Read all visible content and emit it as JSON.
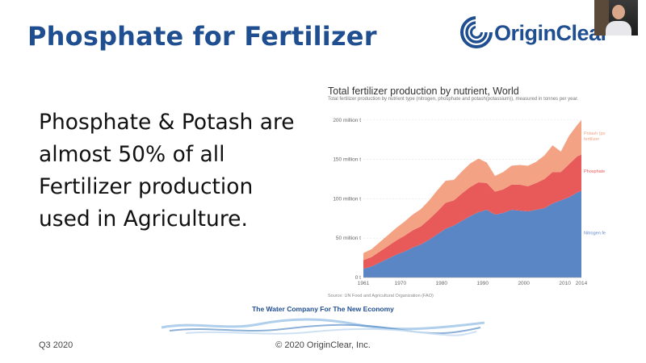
{
  "slide": {
    "title": "Phosphate for Fertilizer",
    "bullet": "Phosphate & Potash are almost 50% of all Fertilizer production used in Agriculture.",
    "logo_text": "OriginClear",
    "tagline": "The Water Company For The New Economy",
    "footer_left": "Q3 2020",
    "footer_center": "© 2020 OriginClear, Inc."
  },
  "colors": {
    "brand_blue": "#1f4e91",
    "nitrogen": "#5b86c5",
    "phosphate": "#e85a5a",
    "potash": "#f3a384"
  },
  "chart_data": {
    "type": "area",
    "title": "Total fertilizer production by nutrient, World",
    "subtitle": "Total fertilizer production by nutrient type (nitrogen, phosphate and potash(potassium)), measured in tonnes per year.",
    "source": "Source: UN Food and Agricultural Organization (FAO)",
    "stacked": true,
    "x": [
      1961,
      1963,
      1965,
      1967,
      1969,
      1971,
      1973,
      1975,
      1977,
      1979,
      1981,
      1983,
      1985,
      1987,
      1989,
      1991,
      1993,
      1995,
      1997,
      1999,
      2001,
      2003,
      2005,
      2007,
      2009,
      2011,
      2013,
      2014
    ],
    "x_ticks": [
      "1961",
      "1970",
      "1980",
      "1990",
      "2000",
      "2010",
      "2014"
    ],
    "y_ticks": [
      "0 t",
      "50 million t",
      "100 million t",
      "150 million t",
      "200 million t"
    ],
    "ylim": [
      0,
      205000000
    ],
    "series": [
      {
        "name": "Nitrogen fertilizer",
        "values": [
          11000000.0,
          14000000.0,
          19000000.0,
          24000000.0,
          29000000.0,
          33000000.0,
          38000000.0,
          42000000.0,
          48000000.0,
          55000000.0,
          62000000.0,
          66000000.0,
          72000000.0,
          78000000.0,
          83000000.0,
          86000000.0,
          80000000.0,
          82000000.0,
          86000000.0,
          85000000.0,
          84000000.0,
          86000000.0,
          88000000.0,
          94000000.0,
          98000000.0,
          102000000.0,
          108000000.0,
          110000000.0
        ]
      },
      {
        "name": "Phosphate fertilizer",
        "values": [
          11000000.0,
          12000000.0,
          14000000.0,
          16000000.0,
          18000000.0,
          20000000.0,
          22000000.0,
          23000000.0,
          26000000.0,
          29000000.0,
          33000000.0,
          32000000.0,
          35000000.0,
          37000000.0,
          38000000.0,
          34000000.0,
          29000000.0,
          30000000.0,
          32000000.0,
          33000000.0,
          32000000.0,
          34000000.0,
          37000000.0,
          40000000.0,
          36000000.0,
          42000000.0,
          46000000.0,
          46000000.0
        ]
      },
      {
        "name": "Potash (potassium) fertilizer",
        "values": [
          9000000.0,
          10000000.0,
          12000000.0,
          14000000.0,
          16000000.0,
          18000000.0,
          20000000.0,
          22000000.0,
          24000000.0,
          27000000.0,
          28000000.0,
          26000000.0,
          28000000.0,
          30000000.0,
          30000000.0,
          26000000.0,
          20000000.0,
          22000000.0,
          24000000.0,
          25000000.0,
          26000000.0,
          27000000.0,
          30000000.0,
          34000000.0,
          26000000.0,
          36000000.0,
          40000000.0,
          44000000.0
        ]
      }
    ]
  }
}
